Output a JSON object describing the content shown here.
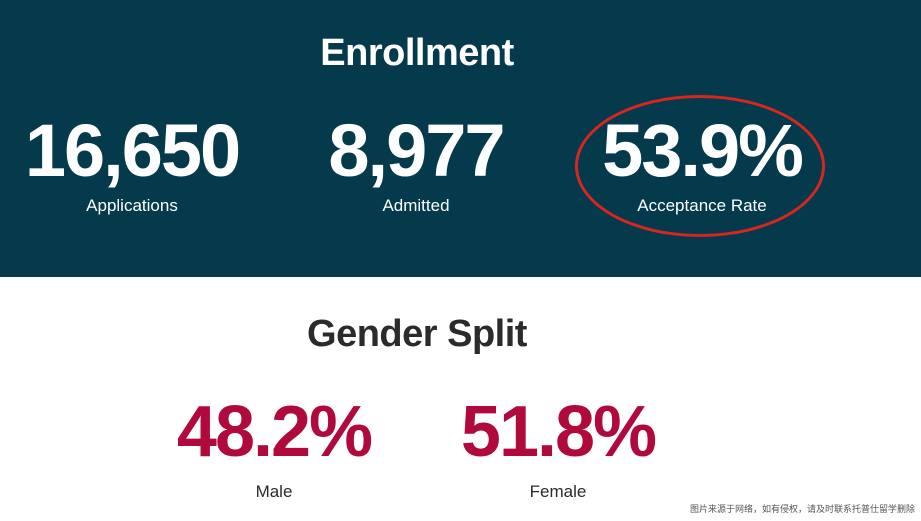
{
  "enrollment": {
    "title": "Enrollment",
    "applications": {
      "value": "16,650",
      "label": "Applications"
    },
    "admitted": {
      "value": "8,977",
      "label": "Admitted"
    },
    "acceptance_rate": {
      "value": "53.9%",
      "label": "Acceptance Rate"
    },
    "background_color": "#043a4b",
    "highlight_color": "#d7261e"
  },
  "gender_split": {
    "title": "Gender Split",
    "male": {
      "value": "48.2%",
      "label": "Male"
    },
    "female": {
      "value": "51.8%",
      "label": "Female"
    },
    "accent_color": "#b0093b"
  },
  "watermark": "图片来源于网络，如有侵权，请及时联系托普仕留学删除"
}
